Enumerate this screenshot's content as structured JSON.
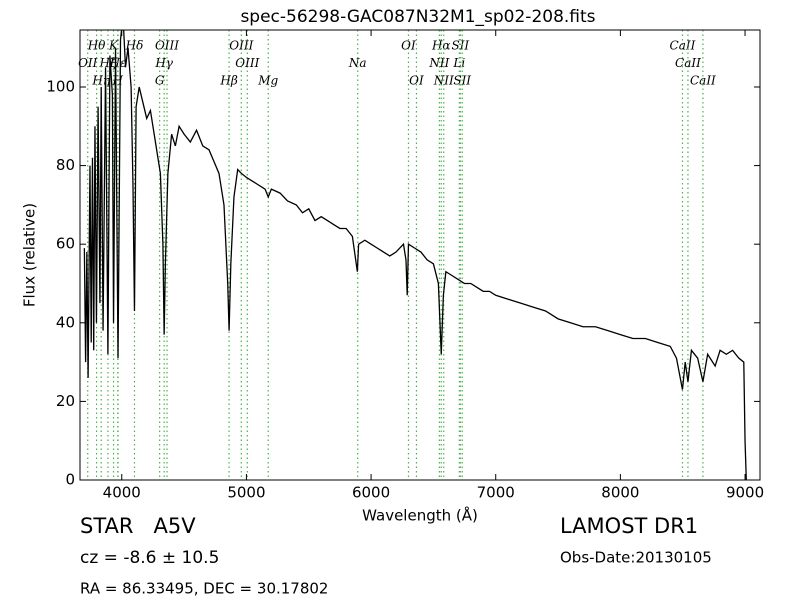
{
  "chart_data": {
    "type": "line",
    "title": "spec-56298-GAC087N32M1_sp02-208.fits",
    "x_label": "Wavelength (Å)",
    "y_label": "Flux (relative)",
    "xlim": [
      3665,
      9120
    ],
    "ylim": [
      0,
      114.5
    ],
    "xticks": [
      4000,
      5000,
      6000,
      7000,
      8000,
      9000
    ],
    "yticks": [
      0,
      20,
      40,
      60,
      80,
      100
    ],
    "line_color": "#000000",
    "marker_color": "#4cb24c",
    "series": [
      {
        "name": "Flux",
        "x": [
          3700,
          3710,
          3720,
          3730,
          3745,
          3755,
          3765,
          3775,
          3785,
          3797,
          3810,
          3825,
          3835,
          3850,
          3870,
          3889,
          3905,
          3925,
          3934,
          3950,
          3970,
          3990,
          4010,
          4030,
          4050,
          4075,
          4090,
          4102,
          4115,
          4140,
          4170,
          4200,
          4230,
          4260,
          4290,
          4310,
          4330,
          4340,
          4350,
          4370,
          4400,
          4430,
          4460,
          4500,
          4550,
          4600,
          4650,
          4700,
          4740,
          4780,
          4820,
          4850,
          4861,
          4875,
          4900,
          4930,
          4960,
          5000,
          5050,
          5100,
          5150,
          5175,
          5200,
          5270,
          5330,
          5400,
          5450,
          5500,
          5550,
          5600,
          5650,
          5700,
          5750,
          5800,
          5850,
          5890,
          5900,
          5950,
          6000,
          6050,
          6100,
          6150,
          6200,
          6260,
          6280,
          6290,
          6300,
          6350,
          6400,
          6450,
          6500,
          6540,
          6563,
          6580,
          6600,
          6650,
          6700,
          6750,
          6800,
          6850,
          6900,
          6950,
          7000,
          7100,
          7200,
          7300,
          7400,
          7500,
          7600,
          7700,
          7800,
          7900,
          8000,
          8100,
          8200,
          8300,
          8400,
          8450,
          8498,
          8520,
          8542,
          8570,
          8620,
          8662,
          8700,
          8760,
          8800,
          8850,
          8900,
          8950,
          8990,
          9000,
          9010
        ],
        "values": [
          59,
          30,
          58,
          26,
          80,
          35,
          82,
          33,
          90,
          40,
          95,
          45,
          100,
          38,
          105,
          32,
          108,
          98,
          40,
          110,
          31,
          112,
          118,
          105,
          110,
          100,
          75,
          43,
          95,
          100,
          96,
          92,
          94,
          88,
          82,
          78,
          60,
          37,
          55,
          78,
          88,
          85,
          90,
          88,
          86,
          89,
          85,
          84,
          81,
          78,
          70,
          50,
          38,
          55,
          72,
          79,
          78,
          77,
          76,
          75,
          74,
          72,
          74,
          73,
          71,
          70,
          68,
          69,
          66,
          67,
          66,
          65,
          64,
          64,
          62,
          53,
          60,
          61,
          60,
          59,
          58,
          57,
          58,
          60,
          56,
          47,
          60,
          59,
          58,
          56,
          55,
          50,
          32,
          47,
          53,
          52,
          51,
          50,
          50,
          49,
          48,
          48,
          47,
          46,
          45,
          44,
          43,
          41,
          40,
          39,
          39,
          38,
          37,
          36,
          36,
          35,
          34,
          31,
          23,
          30,
          25,
          33,
          31,
          25,
          32,
          29,
          33,
          32,
          33,
          31,
          30,
          10,
          0
        ]
      }
    ],
    "spectral_lines": [
      [
        {
          "label": "Hθ",
          "x": 3798
        },
        {
          "label": "K",
          "x": 3934
        },
        {
          "label": "Hδ",
          "x": 4102
        },
        {
          "label": "OIII",
          "x": 4363
        },
        {
          "label": "OIII",
          "x": 4959
        },
        {
          "label": "OI",
          "x": 6300
        },
        {
          "label": "Hα",
          "x": 6563
        },
        {
          "label": "SII",
          "x": 6716
        },
        {
          "label": "CaII",
          "x": 8498
        }
      ],
      [
        {
          "label": "OII",
          "x": 3727
        },
        {
          "label": "Hζ",
          "x": 3889
        },
        {
          "label": "Hε",
          "x": 3970
        },
        {
          "label": "Hγ",
          "x": 4340
        },
        {
          "label": "OIII",
          "x": 5007
        },
        {
          "label": "Na",
          "x": 5893
        },
        {
          "label": "NII",
          "x": 6548
        },
        {
          "label": "Li",
          "x": 6708
        },
        {
          "label": "CaII",
          "x": 8542
        }
      ],
      [
        {
          "label": "Hη",
          "x": 3835
        },
        {
          "label": "H",
          "x": 3968
        },
        {
          "label": "G",
          "x": 4304
        },
        {
          "label": "Hβ",
          "x": 4861
        },
        {
          "label": "Mg",
          "x": 5175
        },
        {
          "label": "OI",
          "x": 6364
        },
        {
          "label": "NII",
          "x": 6583
        },
        {
          "label": "SII",
          "x": 6731
        },
        {
          "label": "CaII",
          "x": 8662
        }
      ]
    ],
    "annotations": {
      "class": "STAR   A5V",
      "redshift": "cz = -8.6 ± 10.5",
      "coords": "RA = 86.33495, DEC = 30.17802",
      "release": "LAMOST DR1",
      "obs_date": "Obs-Date:20130105"
    }
  }
}
